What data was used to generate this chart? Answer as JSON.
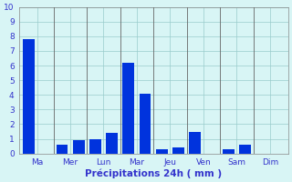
{
  "bars": [
    7.8,
    0.0,
    0.6,
    0.9,
    1.0,
    1.4,
    6.2,
    4.1,
    0.3,
    0.4,
    1.5,
    0.0,
    0.3,
    0.6,
    0.0,
    0.0
  ],
  "bar_color": "#0033dd",
  "background_color": "#d8f5f5",
  "grid_color": "#99cccc",
  "xlabel": "Précipitations 24h ( mm )",
  "xlabel_color": "#3333cc",
  "tick_color": "#3333cc",
  "tick_labels": [
    "Ma",
    "Mer",
    "Lun",
    "Mar",
    "Jeu",
    "Ven",
    "Sam",
    "Dim"
  ],
  "tick_label_positions": [
    0.5,
    2.5,
    4.5,
    6.5,
    8.5,
    10.5,
    12.5,
    14.5
  ],
  "separator_positions": [
    2,
    4,
    6,
    8,
    10,
    12,
    14
  ],
  "ylim": [
    0,
    10
  ],
  "yticks": [
    0,
    1,
    2,
    3,
    4,
    5,
    6,
    7,
    8,
    9,
    10
  ],
  "bar_width": 0.7,
  "n_bars": 16
}
